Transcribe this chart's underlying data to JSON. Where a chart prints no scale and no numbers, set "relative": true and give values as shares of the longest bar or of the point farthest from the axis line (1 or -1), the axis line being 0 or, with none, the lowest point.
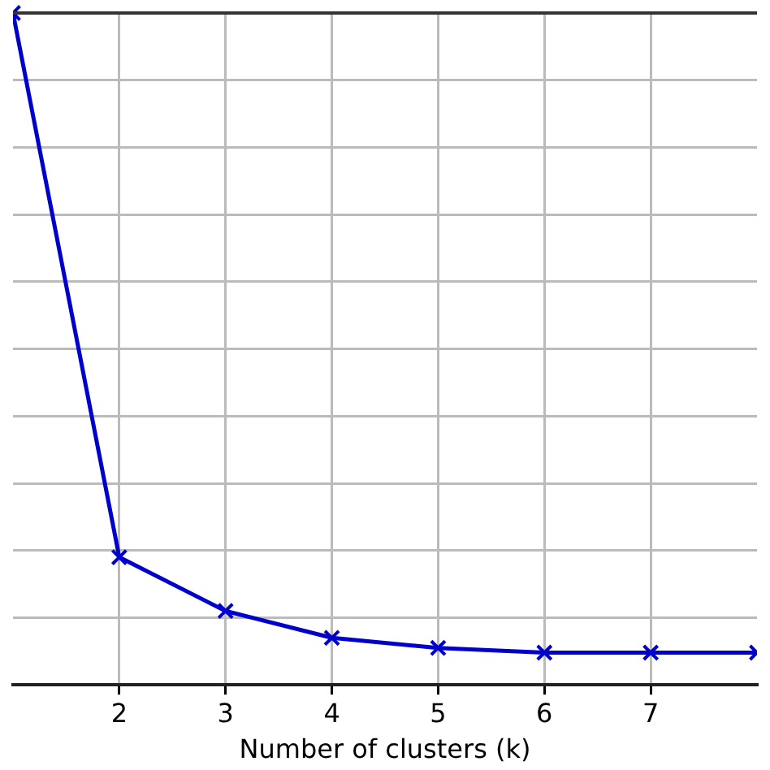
{
  "chart_data": {
    "type": "line",
    "xlabel": "Number of clusters (k)",
    "x": [
      1,
      2,
      3,
      4,
      5,
      6,
      7,
      8
    ],
    "xlim": [
      1,
      8
    ],
    "xticks": [
      2,
      3,
      4,
      5,
      6,
      7
    ],
    "relative": true,
    "series": [
      {
        "color": "#0000cc",
        "values": [
          1,
          0.19,
          0.11,
          0.07,
          0.055,
          0.048,
          0.048,
          0.048
        ]
      }
    ],
    "marker": "cross",
    "grid": true,
    "legend": false
  }
}
